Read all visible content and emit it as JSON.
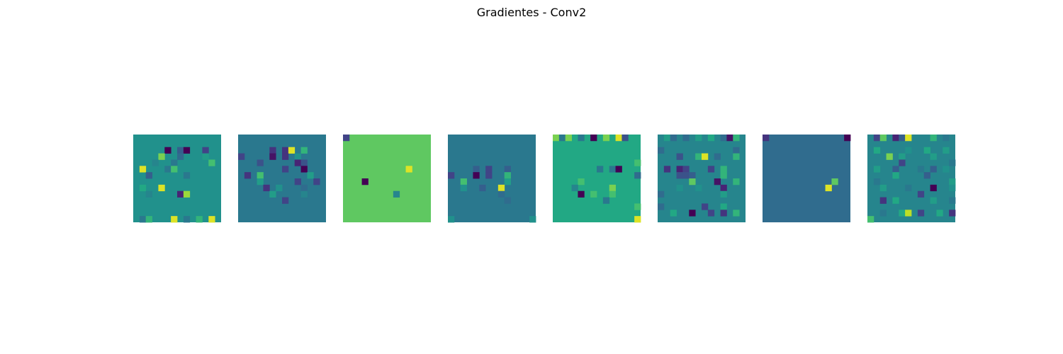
{
  "chart_data": {
    "type": "heatmap",
    "title": "Gradientes - Conv2",
    "colormap": "viridis",
    "axes_visible": false,
    "grid_size": [
      14,
      14
    ],
    "panels": [
      {
        "base": 0.5,
        "cells": [
          [
            2,
            5,
            0.0
          ],
          [
            2,
            7,
            0.3
          ],
          [
            2,
            8,
            0.0
          ],
          [
            2,
            11,
            0.2
          ],
          [
            3,
            4,
            0.8
          ],
          [
            3,
            7,
            0.35
          ],
          [
            3,
            11,
            0.55
          ],
          [
            4,
            3,
            0.45
          ],
          [
            4,
            6,
            0.4
          ],
          [
            4,
            12,
            0.7
          ],
          [
            5,
            1,
            0.95
          ],
          [
            5,
            5,
            0.4
          ],
          [
            5,
            6,
            0.7
          ],
          [
            6,
            2,
            0.3
          ],
          [
            6,
            8,
            0.4
          ],
          [
            7,
            1,
            0.5
          ],
          [
            8,
            1,
            0.6
          ],
          [
            8,
            4,
            0.95
          ],
          [
            9,
            2,
            0.45
          ],
          [
            9,
            7,
            0.1
          ],
          [
            9,
            8,
            0.85
          ],
          [
            13,
            1,
            0.4
          ],
          [
            13,
            2,
            0.65
          ],
          [
            13,
            6,
            0.95
          ],
          [
            13,
            8,
            0.4
          ],
          [
            13,
            10,
            0.65
          ],
          [
            13,
            12,
            0.95
          ]
        ]
      },
      {
        "base": 0.4,
        "cells": [
          [
            2,
            5,
            0.15
          ],
          [
            2,
            7,
            0.15
          ],
          [
            2,
            8,
            0.95
          ],
          [
            2,
            10,
            0.65
          ],
          [
            3,
            0,
            0.2
          ],
          [
            3,
            5,
            0.05
          ],
          [
            3,
            7,
            0.15
          ],
          [
            3,
            9,
            0.5
          ],
          [
            4,
            3,
            0.25
          ],
          [
            4,
            9,
            0.1
          ],
          [
            4,
            10,
            0.25
          ],
          [
            5,
            7,
            0.2
          ],
          [
            5,
            10,
            0.0
          ],
          [
            6,
            1,
            0.15
          ],
          [
            6,
            3,
            0.7
          ],
          [
            6,
            11,
            0.55
          ],
          [
            7,
            3,
            0.55
          ],
          [
            7,
            9,
            0.2
          ],
          [
            7,
            12,
            0.2
          ],
          [
            8,
            4,
            0.15
          ],
          [
            8,
            6,
            0.5
          ],
          [
            8,
            10,
            0.35
          ],
          [
            9,
            5,
            0.55
          ],
          [
            9,
            10,
            0.45
          ],
          [
            10,
            7,
            0.2
          ]
        ]
      },
      {
        "base": 0.75,
        "cells": [
          [
            0,
            0,
            0.2
          ],
          [
            5,
            10,
            0.95
          ],
          [
            7,
            3,
            0.0
          ],
          [
            9,
            8,
            0.45
          ]
        ]
      },
      {
        "base": 0.4,
        "cells": [
          [
            5,
            4,
            0.3
          ],
          [
            5,
            6,
            0.2
          ],
          [
            5,
            9,
            0.3
          ],
          [
            6,
            0,
            0.2
          ],
          [
            6,
            4,
            0.0
          ],
          [
            6,
            6,
            0.2
          ],
          [
            6,
            9,
            0.65
          ],
          [
            7,
            2,
            0.7
          ],
          [
            7,
            9,
            0.55
          ],
          [
            8,
            2,
            0.5
          ],
          [
            8,
            5,
            0.3
          ],
          [
            8,
            8,
            0.95
          ],
          [
            9,
            8,
            0.35
          ],
          [
            10,
            9,
            0.35
          ],
          [
            13,
            0,
            0.5
          ],
          [
            13,
            13,
            0.5
          ]
        ]
      },
      {
        "base": 0.6,
        "cells": [
          [
            0,
            0,
            0.8
          ],
          [
            0,
            1,
            0.4
          ],
          [
            0,
            2,
            0.8
          ],
          [
            0,
            4,
            0.4
          ],
          [
            0,
            6,
            0.0
          ],
          [
            0,
            8,
            0.8
          ],
          [
            0,
            10,
            0.95
          ],
          [
            0,
            11,
            0.25
          ],
          [
            4,
            13,
            0.7
          ],
          [
            5,
            7,
            0.4
          ],
          [
            5,
            9,
            0.4
          ],
          [
            5,
            10,
            0.0
          ],
          [
            6,
            13,
            0.35
          ],
          [
            7,
            4,
            0.7
          ],
          [
            8,
            3,
            0.45
          ],
          [
            8,
            9,
            0.8
          ],
          [
            9,
            4,
            0.0
          ],
          [
            9,
            6,
            0.7
          ],
          [
            9,
            9,
            0.7
          ],
          [
            10,
            8,
            0.4
          ],
          [
            11,
            13,
            0.7
          ],
          [
            13,
            13,
            0.95
          ]
        ]
      },
      {
        "base": 0.45,
        "cells": [
          [
            0,
            1,
            0.55
          ],
          [
            0,
            2,
            0.35
          ],
          [
            0,
            4,
            0.35
          ],
          [
            0,
            6,
            0.55
          ],
          [
            0,
            8,
            0.6
          ],
          [
            0,
            10,
            0.35
          ],
          [
            0,
            11,
            0.05
          ],
          [
            0,
            12,
            0.65
          ],
          [
            2,
            0,
            0.35
          ],
          [
            2,
            12,
            0.35
          ],
          [
            3,
            3,
            0.25
          ],
          [
            3,
            6,
            0.65
          ],
          [
            3,
            7,
            0.95
          ],
          [
            3,
            9,
            0.35
          ],
          [
            3,
            12,
            0.65
          ],
          [
            5,
            1,
            0.15
          ],
          [
            5,
            3,
            0.1
          ],
          [
            5,
            4,
            0.2
          ],
          [
            5,
            8,
            0.2
          ],
          [
            5,
            10,
            0.65
          ],
          [
            6,
            3,
            0.25
          ],
          [
            6,
            4,
            0.25
          ],
          [
            6,
            5,
            0.3
          ],
          [
            6,
            10,
            0.65
          ],
          [
            7,
            5,
            0.75
          ],
          [
            7,
            9,
            0.05
          ],
          [
            7,
            12,
            0.65
          ],
          [
            8,
            3,
            0.5
          ],
          [
            8,
            6,
            0.5
          ],
          [
            8,
            10,
            0.1
          ],
          [
            9,
            0,
            0.35
          ],
          [
            9,
            10,
            0.55
          ],
          [
            11,
            0,
            0.35
          ],
          [
            11,
            7,
            0.2
          ],
          [
            11,
            10,
            0.6
          ],
          [
            12,
            2,
            0.6
          ],
          [
            12,
            5,
            0.0
          ],
          [
            12,
            8,
            0.2
          ],
          [
            12,
            10,
            0.15
          ],
          [
            12,
            12,
            0.65
          ]
        ]
      },
      {
        "base": 0.35,
        "cells": [
          [
            0,
            0,
            0.15
          ],
          [
            0,
            13,
            0.0
          ],
          [
            7,
            11,
            0.75
          ],
          [
            8,
            10,
            0.95
          ]
        ]
      },
      {
        "base": 0.45,
        "cells": [
          [
            0,
            1,
            0.2
          ],
          [
            0,
            2,
            0.75
          ],
          [
            0,
            4,
            0.1
          ],
          [
            0,
            5,
            0.3
          ],
          [
            0,
            6,
            0.95
          ],
          [
            0,
            10,
            0.65
          ],
          [
            0,
            12,
            0.4
          ],
          [
            2,
            1,
            0.6
          ],
          [
            2,
            6,
            0.5
          ],
          [
            2,
            9,
            0.6
          ],
          [
            2,
            12,
            0.55
          ],
          [
            3,
            3,
            0.8
          ],
          [
            3,
            5,
            0.55
          ],
          [
            3,
            10,
            0.55
          ],
          [
            4,
            5,
            0.2
          ],
          [
            4,
            13,
            0.4
          ],
          [
            5,
            1,
            0.55
          ],
          [
            5,
            4,
            0.3
          ],
          [
            5,
            8,
            0.4
          ],
          [
            5,
            10,
            0.3
          ],
          [
            5,
            12,
            0.5
          ],
          [
            6,
            4,
            0.6
          ],
          [
            6,
            9,
            0.3
          ],
          [
            7,
            1,
            0.4
          ],
          [
            7,
            13,
            0.55
          ],
          [
            8,
            2,
            0.55
          ],
          [
            8,
            6,
            0.4
          ],
          [
            8,
            10,
            0.0
          ],
          [
            8,
            13,
            0.5
          ],
          [
            9,
            8,
            0.2
          ],
          [
            10,
            2,
            0.15
          ],
          [
            10,
            4,
            0.6
          ],
          [
            10,
            10,
            0.55
          ],
          [
            10,
            13,
            0.4
          ],
          [
            12,
            2,
            0.4
          ],
          [
            12,
            5,
            0.6
          ],
          [
            12,
            6,
            0.9
          ],
          [
            12,
            8,
            0.2
          ],
          [
            12,
            11,
            0.6
          ],
          [
            12,
            13,
            0.15
          ],
          [
            13,
            0,
            0.7
          ]
        ]
      }
    ]
  }
}
